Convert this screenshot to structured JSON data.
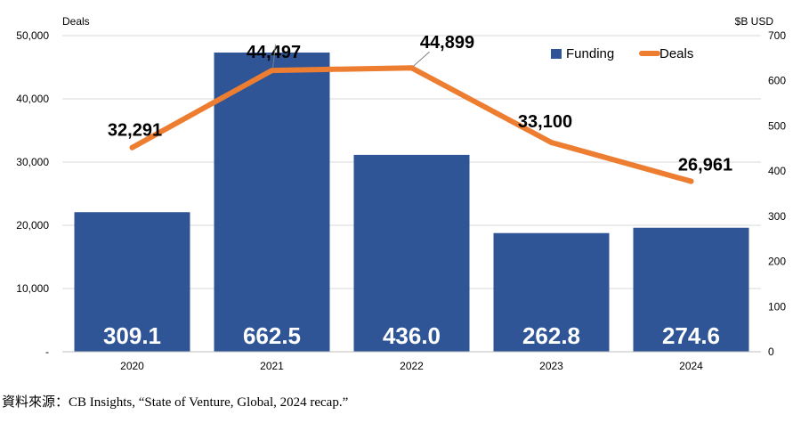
{
  "chart_data": {
    "type": "bar",
    "categories": [
      "2020",
      "2021",
      "2022",
      "2023",
      "2024"
    ],
    "series": [
      {
        "name": "Funding",
        "chart_type": "bar",
        "axis": "right",
        "color": "#2F5597",
        "values": [
          309.1,
          662.5,
          436.0,
          262.8,
          274.6
        ],
        "labels": [
          "309.1",
          "662.5",
          "436.0",
          "262.8",
          "274.6"
        ]
      },
      {
        "name": "Deals",
        "chart_type": "line",
        "axis": "left",
        "color": "#ED7D31",
        "values": [
          32291,
          44497,
          44899,
          33100,
          26961
        ],
        "labels": [
          "32,291",
          "44,497",
          "44,899",
          "33,100",
          "26,961"
        ]
      }
    ],
    "left_axis": {
      "title": "Deals",
      "ylim": [
        0,
        50000
      ],
      "ticks": [
        0,
        10000,
        20000,
        30000,
        40000,
        50000
      ],
      "tick_labels": [
        "-",
        "10,000",
        "20,000",
        "30,000",
        "40,000",
        "50,000"
      ]
    },
    "right_axis": {
      "title": "$B USD",
      "ylim": [
        0,
        700
      ],
      "ticks": [
        0,
        100,
        200,
        300,
        400,
        500,
        600,
        700
      ],
      "tick_labels": [
        "0",
        "100",
        "200",
        "300",
        "400",
        "500",
        "600",
        "700"
      ]
    },
    "grid": true,
    "legend": "top-right"
  },
  "source": "資料來源：CB Insights, “State of Venture, Global, 2024 recap.”"
}
